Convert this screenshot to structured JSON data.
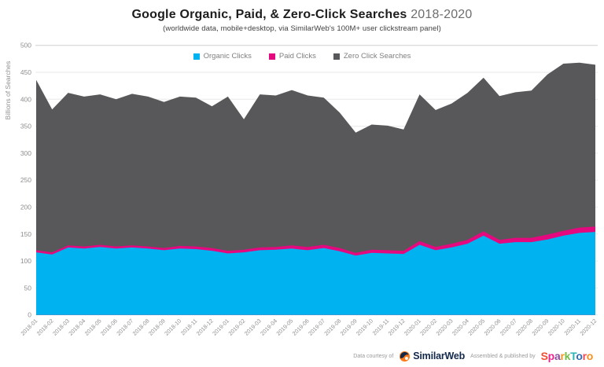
{
  "header": {
    "title_main": "Google Organic, Paid, & Zero-Click Searches",
    "title_period": "2018-2020",
    "subtitle": "(worldwide data, mobile+desktop, via SimilarWeb's 100M+ user clickstream panel)"
  },
  "legend": {
    "items": [
      {
        "label": "Organic Clicks",
        "color": "#00b3f0"
      },
      {
        "label": "Paid Clicks",
        "color": "#e4097e"
      },
      {
        "label": "Zero Click Searches",
        "color": "#58585a"
      }
    ]
  },
  "chart_data": {
    "type": "area",
    "stacked": true,
    "title": "Google Organic, Paid, & Zero-Click Searches 2018-2020",
    "xlabel": "",
    "ylabel": "Billions of Searches",
    "ylim": [
      0,
      500
    ],
    "yticks": [
      0,
      50,
      100,
      150,
      200,
      250,
      300,
      350,
      400,
      450,
      500
    ],
    "grid": true,
    "legend_position": "top",
    "categories": [
      "2018-01",
      "2018-02",
      "2018-03",
      "2018-04",
      "2018-05",
      "2018-06",
      "2018-07",
      "2018-08",
      "2018-09",
      "2018-10",
      "2018-11",
      "2018-12",
      "2019-01",
      "2019-02",
      "2019-03",
      "2019-04",
      "2019-05",
      "2019-06",
      "2019-07",
      "2019-08",
      "2019-09",
      "2019-10",
      "2019-11",
      "2019-12",
      "2020-01",
      "2020-02",
      "2020-03",
      "2020-04",
      "2020-05",
      "2020-06",
      "2020-07",
      "2020-08",
      "2020-09",
      "2020-10",
      "2020-11",
      "2020-12"
    ],
    "series": [
      {
        "name": "Organic Clicks",
        "color": "#00b3f0",
        "values": [
          116,
          112,
          125,
          123,
          126,
          123,
          125,
          123,
          120,
          123,
          122,
          119,
          114,
          116,
          120,
          121,
          123,
          120,
          124,
          118,
          110,
          115,
          114,
          113,
          130,
          120,
          125,
          132,
          147,
          132,
          135,
          135,
          140,
          147,
          152,
          154
        ]
      },
      {
        "name": "Paid Clicks",
        "color": "#e4097e",
        "values": [
          4,
          4,
          4,
          4,
          4,
          4,
          4,
          4,
          4,
          5,
          5,
          5,
          5,
          5,
          5,
          5,
          6,
          6,
          6,
          6,
          5,
          6,
          6,
          6,
          7,
          6,
          7,
          7,
          8,
          7,
          8,
          8,
          9,
          9,
          10,
          10
        ]
      },
      {
        "name": "Zero Click Searches",
        "color": "#58585a",
        "values": [
          316,
          265,
          283,
          278,
          279,
          273,
          281,
          278,
          271,
          277,
          276,
          263,
          286,
          242,
          284,
          281,
          288,
          281,
          273,
          251,
          223,
          232,
          231,
          225,
          272,
          254,
          260,
          273,
          285,
          267,
          270,
          273,
          297,
          310,
          306,
          300
        ]
      }
    ]
  },
  "footer": {
    "courtesy_label": "Data courtesy of",
    "similarweb_name": "SimilarWeb",
    "assembled_label": "Assembled & published by",
    "sparktoro_name": "SparkToro",
    "sparktoro_letters": [
      {
        "char": "S",
        "color": "#f04e30"
      },
      {
        "char": "p",
        "color": "#ec268f"
      },
      {
        "char": "a",
        "color": "#8a4d9e"
      },
      {
        "char": "r",
        "color": "#f7941e"
      },
      {
        "char": "k",
        "color": "#72bf44"
      },
      {
        "char": "T",
        "color": "#2ab6b6"
      },
      {
        "char": "o",
        "color": "#2f6eb6"
      },
      {
        "char": "r",
        "color": "#ef4957"
      },
      {
        "char": "o",
        "color": "#f78f1e"
      }
    ],
    "similarweb_orb_color": "#ff7a1a",
    "similarweb_navy": "#13294b"
  },
  "colors": {
    "grid_line": "#e8e8e8",
    "grid_top_line": "#cfcfcf",
    "axis_text": "#8f8f8f",
    "background": "#ffffff"
  }
}
